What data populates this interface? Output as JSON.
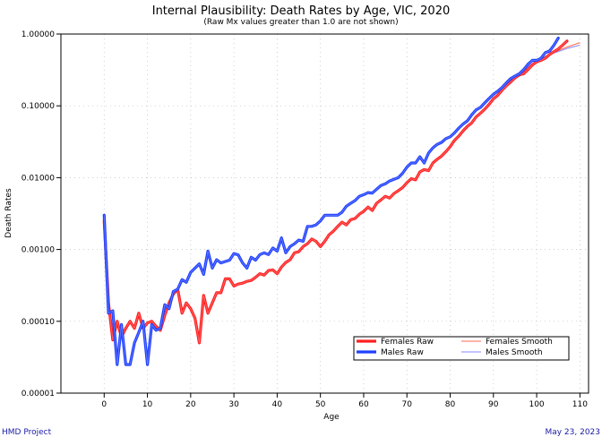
{
  "chart_data": {
    "type": "line",
    "title": "Internal Plausibility: Death Rates by Age, VIC, 2020",
    "subtitle": "(Raw Mx values greater than 1.0 are not shown)",
    "xlabel": "Age",
    "ylabel": "Death Rates",
    "xlim": [
      -10,
      112
    ],
    "ylim": [
      1e-05,
      1.0
    ],
    "yscale": "log",
    "x_ticks": [
      0,
      10,
      20,
      30,
      40,
      50,
      60,
      70,
      80,
      90,
      100,
      110
    ],
    "y_ticks": [
      {
        "value": 1.0,
        "label": "1.00000"
      },
      {
        "value": 0.1,
        "label": "0.10000"
      },
      {
        "value": 0.01,
        "label": "0.01000"
      },
      {
        "value": 0.001,
        "label": "0.00100"
      },
      {
        "value": 0.0001,
        "label": "0.00010"
      },
      {
        "value": 1e-05,
        "label": "0.00001"
      }
    ],
    "grid": true,
    "legend_position": "bottom-right",
    "series": [
      {
        "name": "Females Raw",
        "color": "#ff2020",
        "style": "thick",
        "x": [
          0,
          1,
          2,
          3,
          4,
          5,
          6,
          7,
          8,
          9,
          10,
          11,
          12,
          13,
          14,
          15,
          16,
          17,
          18,
          19,
          20,
          21,
          22,
          23,
          24,
          25,
          26,
          27,
          28,
          29,
          30,
          31,
          32,
          33,
          34,
          35,
          36,
          37,
          38,
          39,
          40,
          41,
          42,
          43,
          44,
          45,
          46,
          47,
          48,
          49,
          50,
          51,
          52,
          53,
          54,
          55,
          56,
          57,
          58,
          59,
          60,
          61,
          62,
          63,
          64,
          65,
          66,
          67,
          68,
          69,
          70,
          71,
          72,
          73,
          74,
          75,
          76,
          77,
          78,
          79,
          80,
          81,
          82,
          83,
          84,
          85,
          86,
          87,
          88,
          89,
          90,
          91,
          92,
          93,
          94,
          95,
          96,
          97,
          98,
          99,
          100,
          101,
          102,
          103,
          104,
          105,
          106,
          107
        ],
        "values": [
          0.0025,
          0.00018,
          5.5e-05,
          0.0001,
          6e-05,
          8e-05,
          0.0001,
          8e-05,
          0.00013,
          8e-05,
          9.5e-05,
          0.0001,
          8.5e-05,
          7.5e-05,
          0.00012,
          0.00018,
          0.00024,
          0.00028,
          0.00013,
          0.00018,
          0.00015,
          0.00011,
          5e-05,
          0.00023,
          0.00013,
          0.00018,
          0.00025,
          0.00025,
          0.00039,
          0.00039,
          0.00031,
          0.00033,
          0.00034,
          0.00036,
          0.00037,
          0.00041,
          0.00046,
          0.00044,
          0.00051,
          0.00052,
          0.00046,
          0.00057,
          0.00066,
          0.00072,
          0.0009,
          0.00093,
          0.0011,
          0.0012,
          0.0014,
          0.0013,
          0.0011,
          0.0013,
          0.0016,
          0.0018,
          0.0021,
          0.0024,
          0.0022,
          0.0026,
          0.0027,
          0.0031,
          0.0034,
          0.0039,
          0.0035,
          0.0044,
          0.0049,
          0.0055,
          0.0052,
          0.006,
          0.0066,
          0.0073,
          0.0085,
          0.0097,
          0.0093,
          0.012,
          0.013,
          0.0125,
          0.016,
          0.018,
          0.02,
          0.023,
          0.027,
          0.033,
          0.038,
          0.045,
          0.052,
          0.058,
          0.07,
          0.079,
          0.09,
          0.105,
          0.125,
          0.14,
          0.165,
          0.19,
          0.215,
          0.245,
          0.27,
          0.28,
          0.32,
          0.37,
          0.41,
          0.43,
          0.46,
          0.52,
          0.57,
          0.62,
          0.7,
          0.8
        ]
      },
      {
        "name": "Males Raw",
        "color": "#2040ff",
        "style": "thick",
        "x": [
          0,
          1,
          2,
          3,
          4,
          5,
          6,
          7,
          8,
          9,
          10,
          11,
          12,
          13,
          14,
          15,
          16,
          17,
          18,
          19,
          20,
          21,
          22,
          23,
          24,
          25,
          26,
          27,
          28,
          29,
          30,
          31,
          32,
          33,
          34,
          35,
          36,
          37,
          38,
          39,
          40,
          41,
          42,
          43,
          44,
          45,
          46,
          47,
          48,
          49,
          50,
          51,
          52,
          53,
          54,
          55,
          56,
          57,
          58,
          59,
          60,
          61,
          62,
          63,
          64,
          65,
          66,
          67,
          68,
          69,
          70,
          71,
          72,
          73,
          74,
          75,
          76,
          77,
          78,
          79,
          80,
          81,
          82,
          83,
          84,
          85,
          86,
          87,
          88,
          89,
          90,
          91,
          92,
          93,
          94,
          95,
          96,
          97,
          98,
          99,
          100,
          101,
          102,
          103,
          104,
          105
        ],
        "values": [
          0.003,
          0.00013,
          0.00014,
          2.5e-05,
          9e-05,
          2.5e-05,
          2.5e-05,
          5e-05,
          7e-05,
          0.0001,
          2.5e-05,
          9e-05,
          7.5e-05,
          8e-05,
          0.00017,
          0.00015,
          0.00026,
          0.00028,
          0.00038,
          0.00035,
          0.00048,
          0.00055,
          0.00063,
          0.00045,
          0.00095,
          0.00055,
          0.00072,
          0.00065,
          0.00068,
          0.00071,
          0.00088,
          0.00084,
          0.00065,
          0.00055,
          0.00078,
          0.00071,
          0.00085,
          0.0009,
          0.00085,
          0.00105,
          0.00095,
          0.00145,
          0.0009,
          0.0011,
          0.0012,
          0.00135,
          0.0013,
          0.0021,
          0.0021,
          0.0022,
          0.0025,
          0.003,
          0.003,
          0.003,
          0.003,
          0.0033,
          0.004,
          0.0044,
          0.0048,
          0.0055,
          0.0058,
          0.0062,
          0.0061,
          0.0069,
          0.0078,
          0.0082,
          0.009,
          0.0095,
          0.01,
          0.0115,
          0.014,
          0.016,
          0.016,
          0.0195,
          0.016,
          0.022,
          0.026,
          0.029,
          0.031,
          0.035,
          0.037,
          0.042,
          0.049,
          0.056,
          0.062,
          0.075,
          0.088,
          0.095,
          0.11,
          0.127,
          0.145,
          0.16,
          0.18,
          0.21,
          0.24,
          0.26,
          0.28,
          0.32,
          0.38,
          0.43,
          0.43,
          0.46,
          0.55,
          0.58,
          0.7,
          0.88
        ]
      },
      {
        "name": "Females Smooth",
        "color": "#ff6a4a",
        "style": "thin",
        "x": [
          80,
          85,
          90,
          95,
          100,
          103,
          105,
          107,
          110
        ],
        "values": [
          0.027,
          0.058,
          0.125,
          0.245,
          0.43,
          0.52,
          0.59,
          0.66,
          0.76
        ]
      },
      {
        "name": "Males Smooth",
        "color": "#8a8aff",
        "style": "thin",
        "x": [
          80,
          85,
          90,
          95,
          100,
          103,
          105,
          107,
          110
        ],
        "values": [
          0.037,
          0.075,
          0.145,
          0.26,
          0.43,
          0.52,
          0.57,
          0.63,
          0.7
        ]
      }
    ]
  },
  "footer": {
    "left": "HMD Project",
    "right": "May 23, 2023"
  }
}
